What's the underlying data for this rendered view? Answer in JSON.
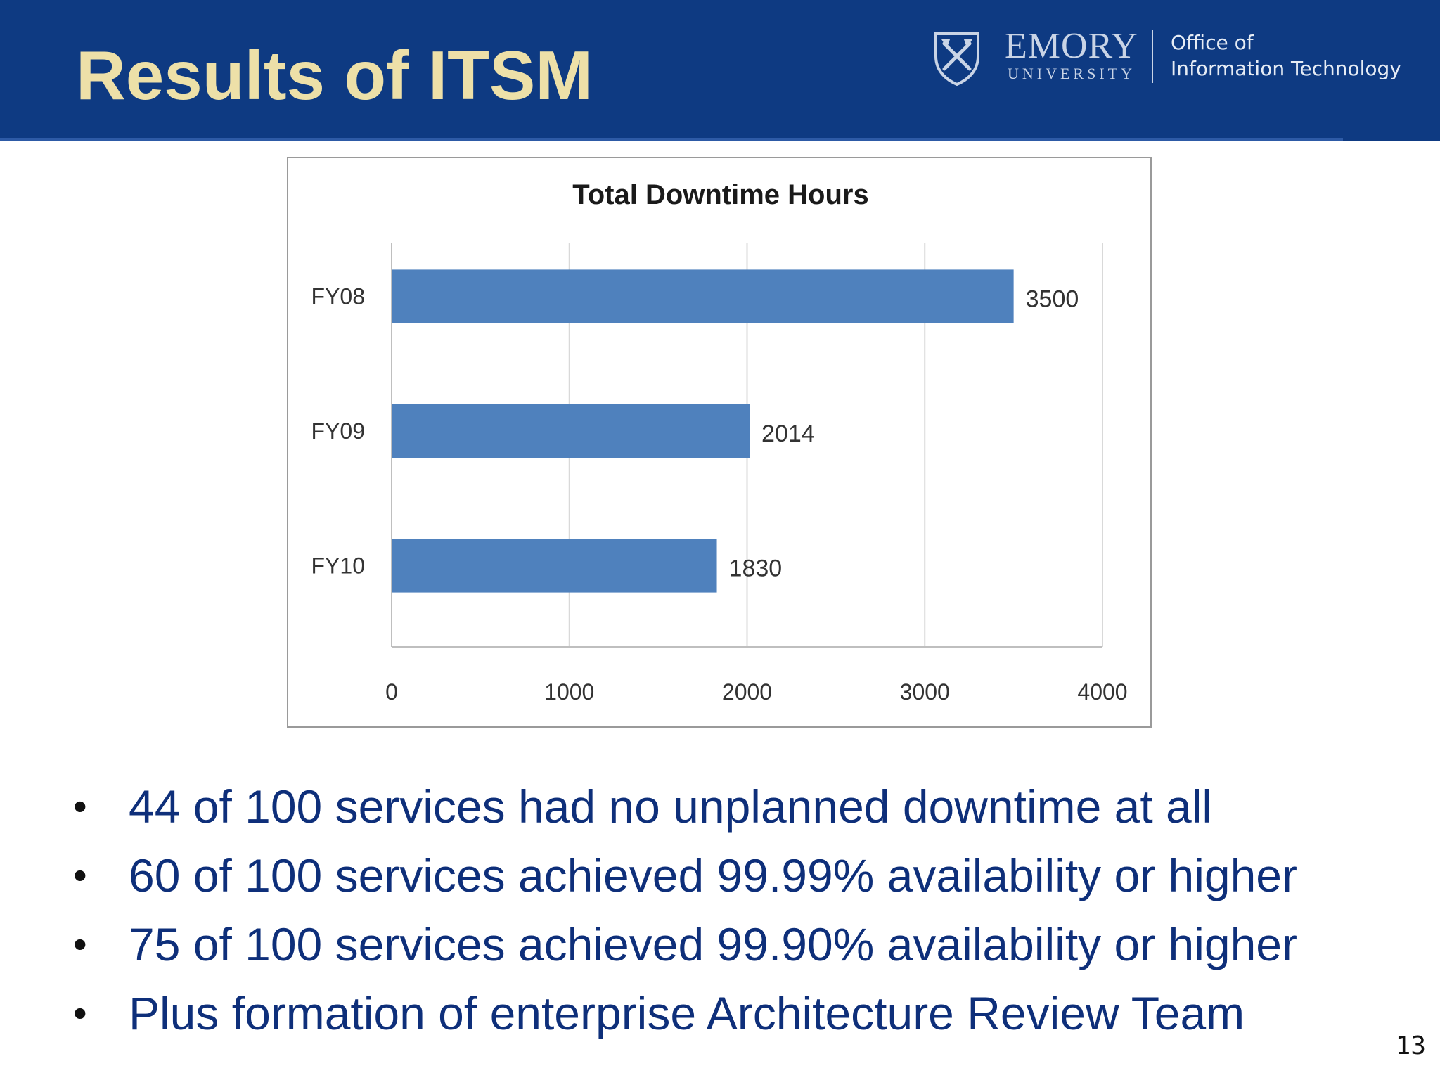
{
  "slide": {
    "title": "Results of ITSM",
    "page_number": "13"
  },
  "logo": {
    "name": "EMORY",
    "subname": "UNIVERSITY",
    "office_line1": "Office of",
    "office_line2": "Information Technology",
    "shield_icon": "emory-shield-icon"
  },
  "colors": {
    "header": "#0e3a82",
    "title": "#ede0a8",
    "bar": "#4f81bd",
    "bullet_text": "#0e2f7a"
  },
  "chart_data": {
    "type": "bar",
    "orientation": "horizontal",
    "title": "Total Downtime Hours",
    "categories": [
      "FY08",
      "FY09",
      "FY10"
    ],
    "values": [
      3500,
      2014,
      1830
    ],
    "data_labels": [
      "3500",
      "2014",
      "1830"
    ],
    "xlim": [
      0,
      4000
    ],
    "xticks": [
      0,
      1000,
      2000,
      3000,
      4000
    ],
    "xlabel": "",
    "ylabel": "",
    "grid": "vertical",
    "legend": "none"
  },
  "bullets": [
    "44 of 100 services had no unplanned downtime at all",
    "60 of 100 services achieved 99.99% availability or higher",
    "75 of 100 services achieved 99.90% availability or higher",
    "Plus formation of enterprise Architecture Review Team"
  ]
}
